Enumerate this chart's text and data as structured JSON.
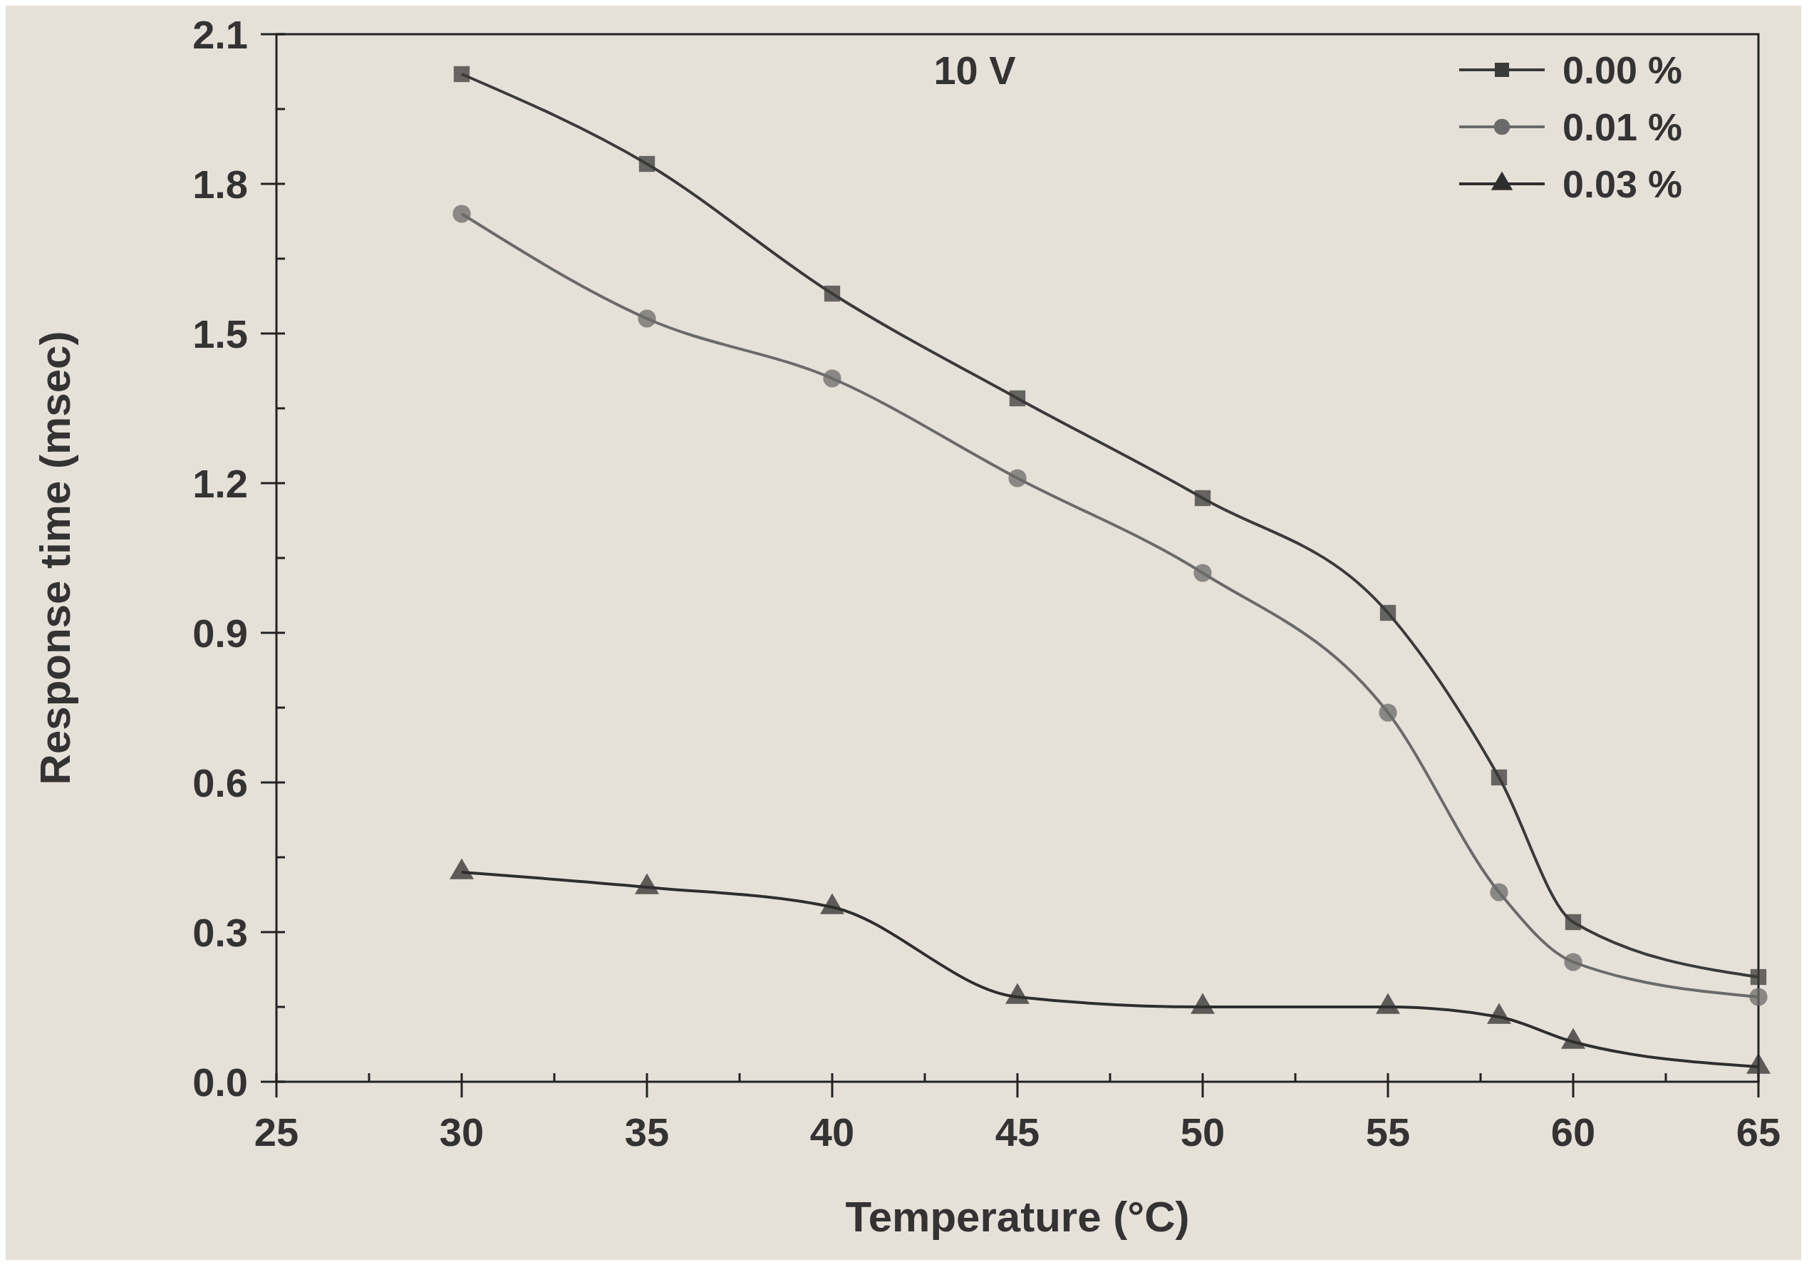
{
  "chart_data": {
    "type": "line",
    "annotations": [
      "10 V"
    ],
    "xlabel": "Temperature (°C)",
    "ylabel": "Response time (msec)",
    "x": [
      30,
      35,
      40,
      45,
      50,
      55,
      58,
      60,
      65
    ],
    "xlim": [
      25,
      65
    ],
    "xticks": [
      25,
      30,
      35,
      40,
      45,
      50,
      55,
      60,
      65
    ],
    "ylim": [
      0,
      2.1
    ],
    "yticks": [
      {
        "value": 0,
        "label": "0.0"
      },
      {
        "value": 0.3,
        "label": "0.3"
      },
      {
        "value": 0.6,
        "label": "0.6"
      },
      {
        "value": 0.9,
        "label": "0.9"
      },
      {
        "value": 1.2,
        "label": "1.2"
      },
      {
        "value": 1.5,
        "label": "1.5"
      },
      {
        "value": 1.8,
        "label": "1.8"
      },
      {
        "value": 2.1,
        "label": "2.1"
      }
    ],
    "grid": false,
    "legend": "top right",
    "line_style": "solid",
    "series": [
      {
        "name": "0.00 %",
        "color": "#3a3a3a",
        "marker": "square",
        "values": [
          2.02,
          1.84,
          1.58,
          1.37,
          1.17,
          0.94,
          0.61,
          0.32,
          0.21
        ]
      },
      {
        "name": "0.01 %",
        "color": "#6a6a6a",
        "marker": "circle",
        "values": [
          1.74,
          1.53,
          1.41,
          1.21,
          1.02,
          0.74,
          0.38,
          0.24,
          0.17
        ]
      },
      {
        "name": "0.03 %",
        "color": "#2e2e2e",
        "marker": "triangle",
        "values": [
          0.42,
          0.39,
          0.35,
          0.17,
          0.15,
          0.15,
          0.13,
          0.08,
          0.03
        ]
      }
    ]
  }
}
